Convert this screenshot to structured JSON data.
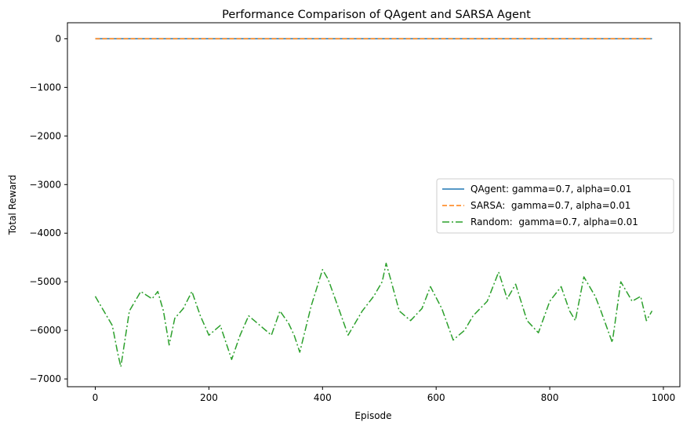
{
  "chart_data": {
    "type": "line",
    "title": "Performance Comparison of QAgent and SARSA Agent",
    "xlabel": "Episode",
    "ylabel": "Total Reward",
    "xlim": [
      -49,
      1029
    ],
    "ylim": [
      -7160,
      330
    ],
    "xticks": [
      0,
      200,
      400,
      600,
      800,
      1000
    ],
    "yticks": [
      0,
      -1000,
      -2000,
      -3000,
      -4000,
      -5000,
      -6000,
      -7000
    ],
    "xtick_labels": [
      "0",
      "200",
      "400",
      "600",
      "800",
      "1000"
    ],
    "ytick_labels": [
      "0",
      "−1000",
      "−2000",
      "−3000",
      "−4000",
      "−5000",
      "−6000",
      "−7000"
    ],
    "grid": false,
    "legend_position": "center-right",
    "series": [
      {
        "name": "QAgent: gamma=0.7, alpha=0.01",
        "color": "#1f77b4",
        "dash": "solid",
        "x": [
          0,
          980
        ],
        "y": [
          0,
          0
        ]
      },
      {
        "name": "SARSA:  gamma=0.7, alpha=0.01",
        "color": "#ff7f0e",
        "dash": "dashed",
        "x": [
          0,
          980
        ],
        "y": [
          0,
          0
        ]
      },
      {
        "name": "Random:  gamma=0.7, alpha=0.01",
        "color": "#2ca02c",
        "dash": "dashdot",
        "x": [
          0,
          10,
          20,
          30,
          40,
          45,
          60,
          80,
          100,
          110,
          120,
          130,
          140,
          155,
          170,
          185,
          200,
          220,
          240,
          255,
          270,
          290,
          310,
          325,
          340,
          350,
          360,
          380,
          400,
          410,
          430,
          445,
          470,
          490,
          505,
          512,
          520,
          535,
          555,
          575,
          590,
          610,
          630,
          650,
          665,
          690,
          710,
          725,
          740,
          760,
          780,
          800,
          820,
          835,
          845,
          860,
          880,
          890,
          910,
          925,
          945,
          960,
          970,
          980
        ],
        "y": [
          -5300,
          -5500,
          -5700,
          -5900,
          -6500,
          -6750,
          -5600,
          -5200,
          -5350,
          -5200,
          -5600,
          -6300,
          -5750,
          -5550,
          -5200,
          -5700,
          -6100,
          -5900,
          -6600,
          -6100,
          -5700,
          -5900,
          -6100,
          -5600,
          -5850,
          -6100,
          -6450,
          -5500,
          -4750,
          -4950,
          -5600,
          -6100,
          -5600,
          -5300,
          -5000,
          -4620,
          -4950,
          -5600,
          -5800,
          -5550,
          -5100,
          -5550,
          -6200,
          -6000,
          -5700,
          -5400,
          -4800,
          -5350,
          -5050,
          -5800,
          -6050,
          -5400,
          -5100,
          -5600,
          -5800,
          -4900,
          -5300,
          -5600,
          -6250,
          -5000,
          -5400,
          -5300,
          -5800,
          -5600
        ]
      }
    ]
  }
}
